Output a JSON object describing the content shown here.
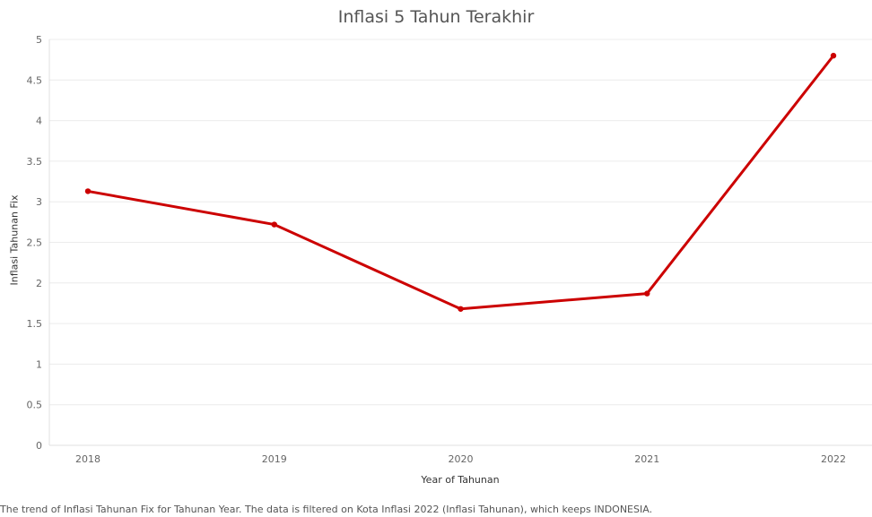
{
  "chart_data": {
    "type": "line",
    "title": "Inflasi 5 Tahun Terakhir",
    "xlabel": "Year of Tahunan",
    "ylabel": "Inflasi Tahunan Fix",
    "categories": [
      "2018",
      "2019",
      "2020",
      "2021",
      "2022"
    ],
    "series": [
      {
        "values": [
          3.13,
          2.72,
          1.68,
          1.87,
          4.8
        ],
        "color": "#cc0000"
      }
    ],
    "ylim": [
      0,
      5
    ],
    "yticks": [
      "0",
      "0.5",
      "1",
      "1.5",
      "2",
      "2.5",
      "3",
      "3.5",
      "4",
      "4.5",
      "5"
    ],
    "grid": true,
    "caption": "The trend of Inflasi Tahunan Fix for Tahunan Year. The data is filtered on Kota Inflasi 2022 (Inflasi Tahunan), which keeps INDONESIA."
  }
}
